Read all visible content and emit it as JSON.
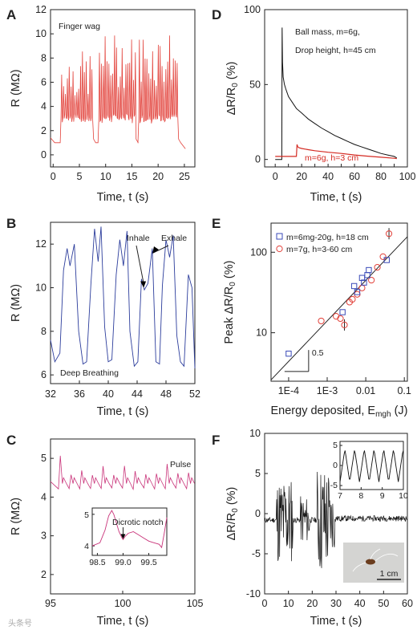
{
  "colors": {
    "A": "#e2413a",
    "B": "#2c3d9c",
    "C": "#c9347a",
    "D_series1": "#111111",
    "D_series2": "#d42a22",
    "E_series1": "#3a4ab8",
    "E_series2": "#e2413a",
    "F": "#111111"
  },
  "watermark": "头条号",
  "chart_data": [
    {
      "panel": "A",
      "type": "line",
      "annotation": "Finger wag",
      "xlabel": "Time, t (s)",
      "ylabel": "R (MΩ)",
      "xlim": [
        -0.5,
        27
      ],
      "ylim": [
        -1,
        12
      ],
      "xticks": [
        "0",
        "5",
        "10",
        "15",
        "20",
        "25"
      ],
      "yticks": [
        "0",
        "2",
        "4",
        "6",
        "8",
        "10",
        "12"
      ],
      "baseline": 1.0,
      "pulse_interval_s": 0.36,
      "bursts": [
        {
          "start": 1.5,
          "end": 7.6,
          "peak": 8.6
        },
        {
          "start": 8.7,
          "end": 15.7,
          "peak": 10.0
        },
        {
          "start": 16.3,
          "end": 23.8,
          "peak": 10.3
        }
      ]
    },
    {
      "panel": "B",
      "type": "line",
      "annotation": "Deep Breathing",
      "xlabel": "Time, t (s)",
      "ylabel": "R (MΩ)",
      "xlim": [
        32,
        52
      ],
      "ylim": [
        5.6,
        13
      ],
      "xticks": [
        "32",
        "36",
        "40",
        "44",
        "48",
        "52"
      ],
      "yticks": [
        "6",
        "8",
        "10",
        "12"
      ],
      "labels": [
        "Inhale",
        "Exhale"
      ],
      "x": [
        32,
        32.6,
        33.3,
        33.8,
        34.3,
        34.7,
        35.3,
        35.9,
        36.5,
        37.0,
        37.6,
        38.1,
        38.6,
        39.0,
        39.5,
        40.0,
        40.5,
        41.1,
        41.6,
        42.1,
        42.6,
        43.0,
        43.6,
        44.1,
        44.6,
        45.0,
        45.5,
        46.1,
        46.6,
        47.1,
        47.5,
        48.0,
        48.5,
        49.0,
        49.5,
        50.0,
        50.5,
        51.1,
        51.6,
        52
      ],
      "y": [
        7.6,
        6.6,
        7.0,
        10.8,
        11.8,
        11.0,
        12.0,
        8.0,
        6.5,
        6.6,
        10.2,
        12.7,
        11.2,
        12.8,
        8.2,
        6.6,
        6.7,
        10.6,
        12.2,
        11.0,
        12.6,
        8.0,
        6.4,
        6.6,
        10.4,
        9.9,
        10.2,
        11.8,
        6.6,
        6.5,
        10.1,
        12.2,
        11.4,
        12.4,
        7.8,
        6.6,
        6.4,
        10.6,
        10.0,
        6.3
      ]
    },
    {
      "panel": "C",
      "type": "line",
      "annotation": "Pulse",
      "xlabel": "Time, t (s)",
      "ylabel": "R (MΩ)",
      "xlim": [
        95,
        105
      ],
      "ylim": [
        1.5,
        5.5
      ],
      "xticks": [
        "95",
        "100",
        "105"
      ],
      "yticks": [
        "2",
        "3",
        "4",
        "5"
      ],
      "beat_interval_s": 0.74,
      "first_beat_s": 95.6,
      "peak": 4.95,
      "trough": 4.2,
      "inset": {
        "annotation": "Dicrotic notch",
        "xlim": [
          98.4,
          99.85
        ],
        "ylim": [
          3.7,
          5.2
        ],
        "xticks": [
          "98.5",
          "99.0",
          "99.5"
        ],
        "yticks": [
          "4",
          "5"
        ],
        "x": [
          98.4,
          98.55,
          98.65,
          98.72,
          98.78,
          98.82,
          98.86,
          98.92,
          98.98,
          99.0,
          99.04,
          99.1,
          99.2,
          99.3,
          99.4,
          99.5,
          99.6,
          99.7,
          99.75,
          99.8,
          99.85
        ],
        "y": [
          4.0,
          4.1,
          4.5,
          4.95,
          5.12,
          5.0,
          4.78,
          4.45,
          4.25,
          4.2,
          4.3,
          4.4,
          4.45,
          4.35,
          4.25,
          4.15,
          4.1,
          4.05,
          3.95,
          4.4,
          4.9
        ]
      }
    },
    {
      "panel": "D",
      "type": "line",
      "xlabel": "Time, t (s)",
      "ylabel": "ΔR/R₀ (%)",
      "xlim": [
        -8,
        100
      ],
      "ylim": [
        -5,
        100
      ],
      "xticks": [
        "0",
        "10",
        "20",
        "30",
        "40",
        "50",
        "60",
        "70",
        "80",
        "90",
        "100"
      ],
      "yticks": [
        "0",
        "50",
        "100"
      ],
      "series": [
        {
          "name": "Ball mass, m=6g,",
          "name_line2": "Drop height, h=45 cm",
          "x": [
            0,
            5,
            5.2,
            5.5,
            6,
            7,
            8,
            10,
            13,
            16,
            20,
            25,
            30,
            35,
            40,
            45,
            50,
            55,
            60,
            65,
            70,
            75,
            80,
            85,
            90,
            92
          ],
          "y": [
            0,
            0,
            88,
            65,
            55,
            50,
            47,
            42,
            38,
            34,
            31,
            27,
            24,
            21,
            18.5,
            16,
            14,
            12,
            10,
            8.5,
            7,
            5.5,
            4,
            3,
            2,
            1
          ]
        },
        {
          "name": "m=6g, h=3 cm",
          "x": [
            0,
            16,
            16.5,
            17,
            18,
            20,
            25,
            30,
            40,
            50,
            60,
            70,
            80,
            90,
            92
          ],
          "y": [
            2,
            2,
            10,
            8.5,
            7.8,
            7.3,
            6.5,
            5.8,
            4.8,
            4,
            3,
            2.2,
            1.5,
            0.8,
            0.5
          ]
        }
      ]
    },
    {
      "panel": "E",
      "type": "scatter",
      "xscale": "log",
      "yscale": "log",
      "xlabel": "Energy deposited, E_mgh (J)",
      "ylabel": "Peak ΔR/R₀ (%)",
      "xlim": [
        3.5e-05,
        0.12
      ],
      "ylim": [
        2.5,
        230
      ],
      "xticks": [
        "1E-4",
        "1E-3",
        "0.01",
        "0.1"
      ],
      "yticks": [
        "10",
        "100"
      ],
      "slope_label": "0.5",
      "fit_line": {
        "x": [
          3.5e-05,
          0.12
        ],
        "y": [
          2.6,
          156
        ]
      },
      "series": [
        {
          "name": "m=6mg-20g, h=18 cm",
          "marker": "square",
          "x": [
            0.0001,
            0.0025,
            0.005,
            0.006,
            0.008,
            0.009,
            0.011,
            0.012,
            0.035
          ],
          "y": [
            5.5,
            18,
            38,
            32,
            48,
            42,
            52,
            60,
            80
          ]
        },
        {
          "name": "m=7g, h=3-60 cm",
          "marker": "circle",
          "x": [
            0.0007,
            0.0017,
            0.0022,
            0.0028,
            0.0038,
            0.0045,
            0.006,
            0.008,
            0.014,
            0.02,
            0.028,
            0.04
          ],
          "y": [
            14,
            16,
            15,
            12.5,
            24,
            26,
            30,
            36,
            45,
            65,
            88,
            170
          ]
        }
      ]
    },
    {
      "panel": "F",
      "type": "line",
      "xlabel": "Time, t (s)",
      "ylabel": "ΔR/R₀ (%)",
      "xlim": [
        0,
        60
      ],
      "ylim": [
        -10,
        10
      ],
      "xticks": [
        "0",
        "10",
        "20",
        "30",
        "40",
        "50",
        "60"
      ],
      "yticks": [
        "-10",
        "-5",
        "0",
        "5",
        "10"
      ],
      "photo_scale_label": "1 cm",
      "bursts": [
        {
          "start": 5,
          "end": 12,
          "amp": 5.5
        },
        {
          "start": 15,
          "end": 19,
          "amp": 3.0
        },
        {
          "start": 22,
          "end": 27,
          "amp": 7.0
        },
        {
          "start": 27,
          "end": 29.5,
          "amp": 4.0
        }
      ],
      "inset": {
        "xlim": [
          7,
          10
        ],
        "ylim": [
          -6,
          6
        ],
        "xticks": [
          "7",
          "8",
          "9",
          "10"
        ],
        "yticks": [
          "-5",
          "0",
          "5"
        ],
        "period_s": 0.46,
        "amplitude": 4.3
      }
    }
  ]
}
